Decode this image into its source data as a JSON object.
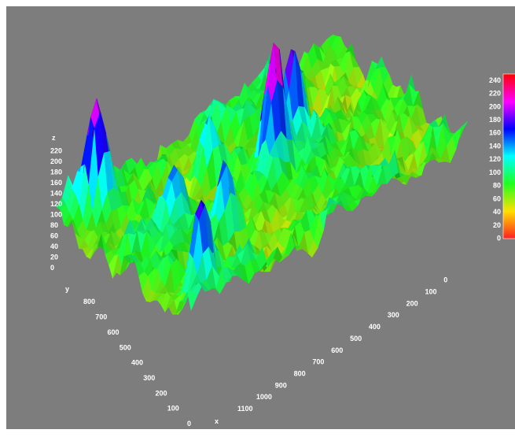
{
  "chart_data": {
    "type": "surface",
    "title": "",
    "xlabel": "x",
    "ylabel": "y",
    "zlabel": "z",
    "x_ticks": [
      0,
      100,
      200,
      300,
      400,
      500,
      600,
      700,
      800,
      900,
      1000,
      1100
    ],
    "y_ticks": [
      0,
      100,
      200,
      300,
      400,
      500,
      600,
      700,
      800
    ],
    "z_ticks": [
      0,
      20,
      40,
      60,
      80,
      100,
      120,
      140,
      160,
      180,
      200,
      220
    ],
    "xlim": [
      0,
      1200
    ],
    "ylim": [
      0,
      900
    ],
    "zlim": [
      0,
      240
    ],
    "colorbar": {
      "ticks": [
        0,
        20,
        40,
        60,
        80,
        100,
        120,
        140,
        160,
        180,
        200,
        220,
        240
      ],
      "range": [
        0,
        250
      ],
      "colors": [
        "#ff2020",
        "#ffe000",
        "#20ff20",
        "#00ffff",
        "#0000ff",
        "#ff00ff",
        "#ff0000"
      ]
    },
    "peaks": [
      {
        "x": 650,
        "y": 450,
        "z": 245
      },
      {
        "x": 780,
        "y": 520,
        "z": 200
      },
      {
        "x": 120,
        "y": 820,
        "z": 215
      },
      {
        "x": 120,
        "y": 120,
        "z": 200
      },
      {
        "x": 350,
        "y": 300,
        "z": 180
      },
      {
        "x": 500,
        "y": 650,
        "z": 175
      },
      {
        "x": 250,
        "y": 500,
        "z": 165
      },
      {
        "x": 900,
        "y": 700,
        "z": 160
      }
    ]
  },
  "colors": {
    "background": "#7d7d7d",
    "text": "#ffffff"
  }
}
